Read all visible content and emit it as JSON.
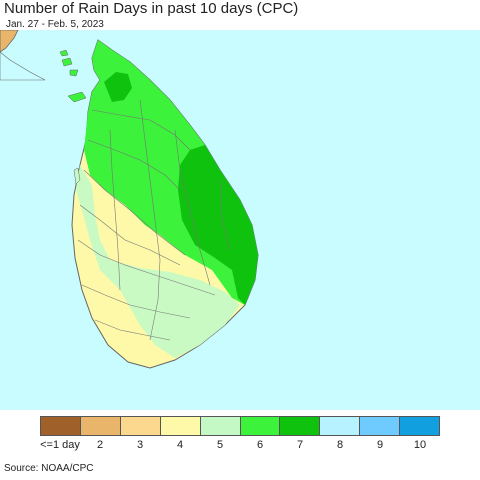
{
  "header": {
    "title": "Number of Rain Days in past 10 days (CPC)",
    "subtitle": "Jan. 27 - Feb. 5, 2023"
  },
  "map": {
    "ocean_color": "#c9fcff",
    "border_color": "#666666"
  },
  "legend": {
    "items": [
      {
        "label": "<=1 day",
        "color": "#a0602a"
      },
      {
        "label": "2",
        "color": "#e9b56a"
      },
      {
        "label": "3",
        "color": "#fbd88d"
      },
      {
        "label": "4",
        "color": "#fdf9a8"
      },
      {
        "label": "5",
        "color": "#c4f9c6"
      },
      {
        "label": "6",
        "color": "#3cf23b"
      },
      {
        "label": "7",
        "color": "#0ec20e"
      },
      {
        "label": "8",
        "color": "#b6f2ff"
      },
      {
        "label": "9",
        "color": "#6fcbfd"
      },
      {
        "label": "10",
        "color": "#119fe0"
      }
    ]
  },
  "footer": {
    "source": "Source: NOAA/CPC"
  }
}
